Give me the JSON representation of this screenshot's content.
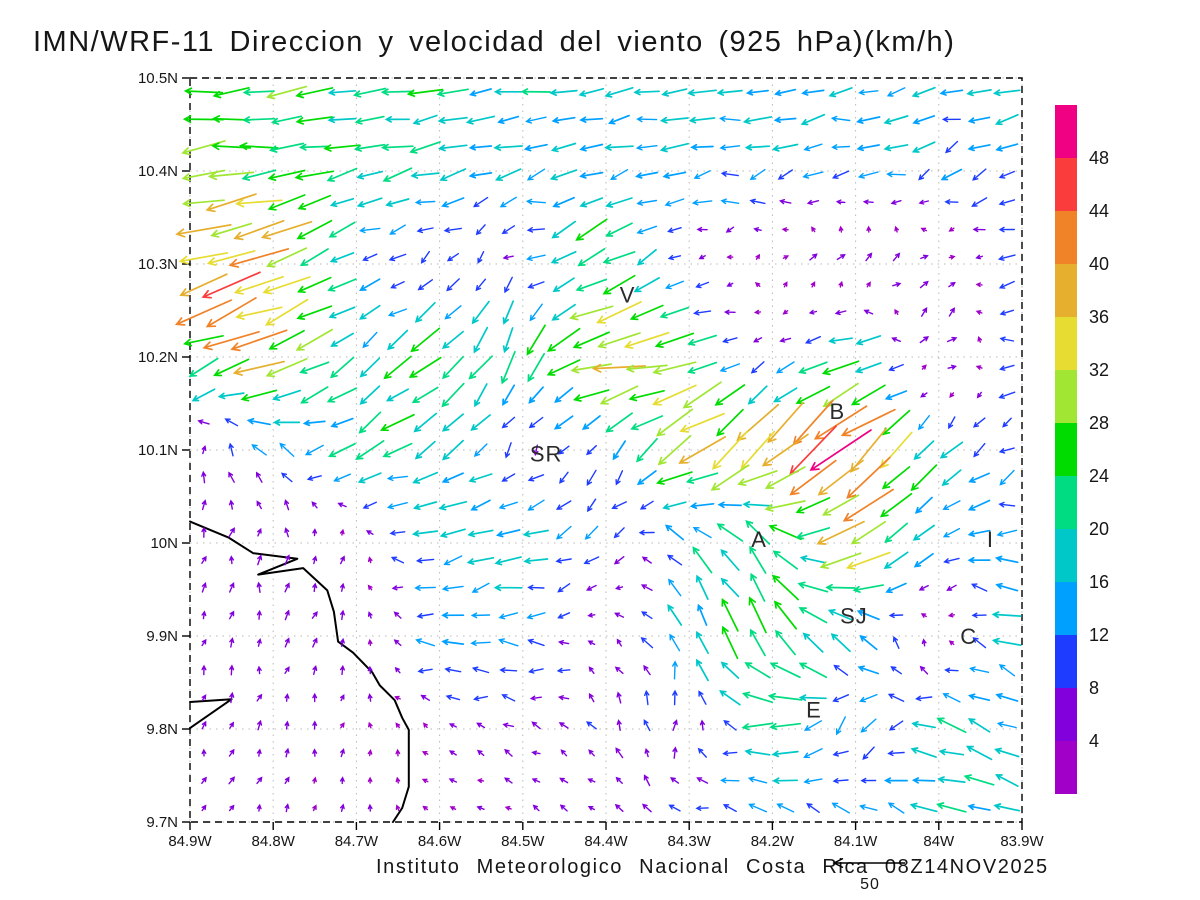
{
  "title": "IMN/WRF-11 Direccion y velocidad del viento (925 hPa)(km/h)",
  "footer": {
    "text": "Instituto Meteorologico Nacional Costa Rica  08Z14NOV2025",
    "reference_value": "50"
  },
  "axes": {
    "y_tick_labels": [
      "10.5N",
      "10.4N",
      "10.3N",
      "10.2N",
      "10.1N",
      "10N",
      "9.9N",
      "9.8N",
      "9.7N"
    ],
    "x_tick_labels": [
      "84.9W",
      "84.8W",
      "84.7W",
      "84.6W",
      "84.5W",
      "84.4W",
      "84.3W",
      "84.2W",
      "84.1W",
      "84W",
      "83.9W"
    ]
  },
  "colorbar": {
    "tick_labels": [
      "4",
      "8",
      "12",
      "16",
      "20",
      "24",
      "28",
      "32",
      "36",
      "40",
      "44",
      "48"
    ]
  },
  "chart_data": {
    "type": "quiver",
    "title": "IMN/WRF-11 Direccion y velocidad del viento (925 hPa)(km/h)",
    "variable": "wind direction and speed",
    "level": "925 hPa",
    "units": "km/h",
    "valid_time": "08Z14NOV2025",
    "source_caption": "Instituto Meteorologico Nacional Costa Rica",
    "lon_range": [
      -84.9,
      -83.9
    ],
    "lat_range": [
      9.7,
      10.5
    ],
    "x_ticks_deg": [
      -84.9,
      -84.8,
      -84.7,
      -84.6,
      -84.5,
      -84.4,
      -84.3,
      -84.2,
      -84.1,
      -84.0,
      -83.9
    ],
    "y_ticks_deg": [
      10.5,
      10.4,
      10.3,
      10.2,
      10.1,
      10.0,
      9.9,
      9.8,
      9.7
    ],
    "grid": true,
    "reference_arrow_kmh": 50,
    "speed_levels_kmh": [
      4,
      8,
      12,
      16,
      20,
      24,
      28,
      32,
      36,
      40,
      44,
      48
    ],
    "palette": [
      "#A000C8",
      "#8200DC",
      "#1E3CFF",
      "#00A0FF",
      "#00C8C8",
      "#00DC82",
      "#00DC00",
      "#A0E632",
      "#E6DC32",
      "#E6AF2D",
      "#F08228",
      "#FA3C3C",
      "#F00082"
    ],
    "stations": [
      {
        "label": "V",
        "lon": -84.374,
        "lat": 10.266
      },
      {
        "label": "B",
        "lon": -84.122,
        "lat": 10.141
      },
      {
        "label": "SR",
        "lon": -84.472,
        "lat": 10.095
      },
      {
        "label": "A",
        "lon": -84.216,
        "lat": 10.003
      },
      {
        "label": "SJ",
        "lon": -84.102,
        "lat": 9.921
      },
      {
        "label": "C",
        "lon": -83.964,
        "lat": 9.899
      },
      {
        "label": "I",
        "lon": -83.938,
        "lat": 10.003
      },
      {
        "label": "E",
        "lon": -84.15,
        "lat": 9.82
      }
    ],
    "wind_field_grid": {
      "lons": [
        -84.9,
        -84.8,
        -84.7,
        -84.6,
        -84.5,
        -84.4,
        -84.3,
        -84.2,
        -84.1,
        -84.0,
        -83.9
      ],
      "lats": [
        10.5,
        10.4,
        10.3,
        10.2,
        10.1,
        10.0,
        9.9,
        9.8,
        9.7
      ],
      "u_kmh": [
        [
          -26,
          -24,
          -22,
          -20,
          -18,
          -18,
          -17,
          -16,
          -16,
          -15,
          -14
        ],
        [
          -26,
          -28,
          -20,
          -16,
          -15,
          -16,
          -15,
          -14,
          -13,
          -12,
          -12
        ],
        [
          -38,
          -34,
          -10,
          -4,
          -6,
          -24,
          -4,
          3,
          8,
          6,
          -12
        ],
        [
          -30,
          -32,
          -14,
          -18,
          -8,
          -36,
          -24,
          -4,
          -26,
          10,
          -12
        ],
        [
          2,
          -8,
          -16,
          -18,
          -4,
          -6,
          -26,
          -32,
          -34,
          -12,
          -8
        ],
        [
          2,
          2,
          1,
          -16,
          -18,
          -6,
          -10,
          -16,
          -28,
          -10,
          -16
        ],
        [
          1,
          1,
          2,
          -14,
          -12,
          -3,
          -8,
          -14,
          -16,
          3,
          -20
        ],
        [
          1,
          2,
          1,
          -4,
          -6,
          -4,
          2,
          -24,
          -6,
          -20,
          -12
        ],
        [
          2,
          2,
          1,
          -3,
          -4,
          -4,
          -10,
          -12,
          -10,
          -18,
          -16
        ]
      ],
      "v_kmh": [
        [
          -2,
          -3,
          -2,
          -3,
          -3,
          -3,
          -3,
          -3,
          -4,
          -4,
          -4
        ],
        [
          -3,
          -2,
          -5,
          -4,
          -4,
          -3,
          -3,
          -4,
          -4,
          -5,
          -5
        ],
        [
          -10,
          -12,
          -8,
          -6,
          -4,
          -14,
          -3,
          3,
          5,
          3,
          -4
        ],
        [
          -14,
          -12,
          -10,
          -18,
          -20,
          -8,
          -4,
          -4,
          -6,
          6,
          -3
        ],
        [
          6,
          8,
          -10,
          -12,
          -6,
          -8,
          -20,
          -28,
          -30,
          -12,
          -6
        ],
        [
          5,
          6,
          5,
          -2,
          -2,
          -8,
          14,
          20,
          -20,
          -8,
          4
        ],
        [
          5,
          6,
          5,
          0,
          -1,
          3,
          14,
          22,
          12,
          2,
          4
        ],
        [
          5,
          5,
          4,
          2,
          2,
          6,
          8,
          -2,
          -12,
          6,
          8
        ],
        [
          4,
          4,
          4,
          2,
          2,
          3,
          3,
          4,
          8,
          2,
          2
        ]
      ]
    },
    "coastline": [
      [
        [
          -84.9,
          10.023
        ],
        [
          -84.854,
          10.006
        ],
        [
          -84.824,
          9.989
        ],
        [
          -84.771,
          9.983
        ],
        [
          -84.818,
          9.966
        ],
        [
          -84.764,
          9.973
        ],
        [
          -84.735,
          9.949
        ],
        [
          -84.727,
          9.926
        ],
        [
          -84.722,
          9.894
        ],
        [
          -84.704,
          9.882
        ],
        [
          -84.681,
          9.861
        ],
        [
          -84.672,
          9.847
        ],
        [
          -84.654,
          9.831
        ],
        [
          -84.645,
          9.812
        ],
        [
          -84.637,
          9.799
        ],
        [
          -84.637,
          9.738
        ],
        [
          -84.645,
          9.715
        ],
        [
          -84.656,
          9.7
        ]
      ],
      [
        [
          -84.9,
          9.829
        ],
        [
          -84.85,
          9.832
        ],
        [
          -84.9,
          9.801
        ]
      ]
    ]
  }
}
